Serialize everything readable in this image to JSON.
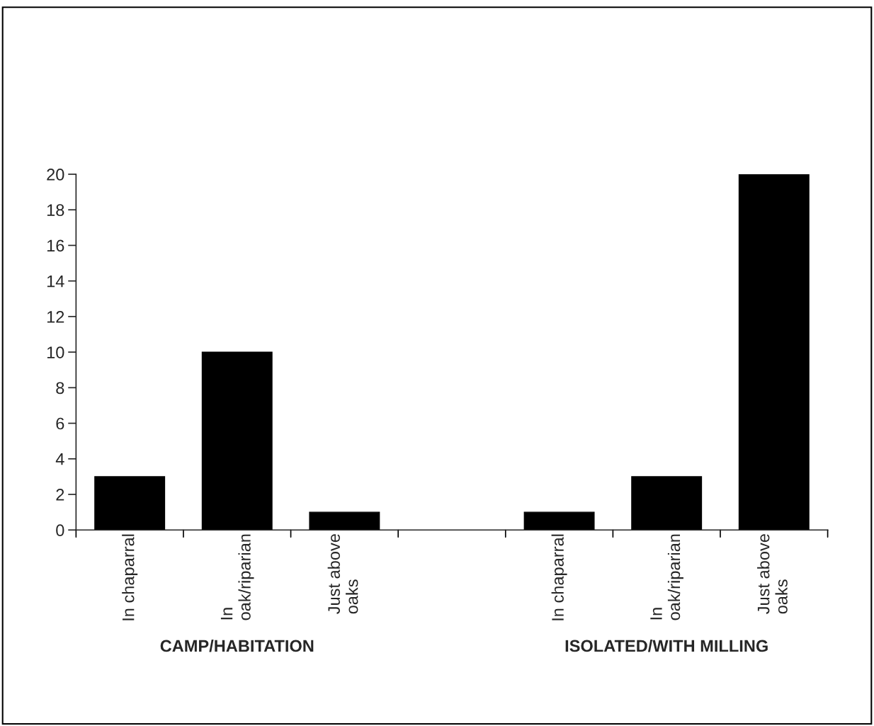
{
  "chart_data": {
    "type": "bar",
    "categories": [
      "In chaparral",
      "In\noak/riparian",
      "Just above\noaks",
      null,
      "In chaparral",
      "In\noak/riparian",
      "Just above\noaks"
    ],
    "values": [
      3,
      10,
      1,
      null,
      1,
      3,
      20
    ],
    "color": "#000000",
    "ylim": [
      0,
      20
    ],
    "yticks": [
      0,
      2,
      4,
      6,
      8,
      10,
      12,
      14,
      16,
      18,
      20
    ],
    "grid": false,
    "legend": false,
    "annotations": [
      "CAMP/HABITATION",
      "ISOLATED/WITH MILLING"
    ]
  }
}
